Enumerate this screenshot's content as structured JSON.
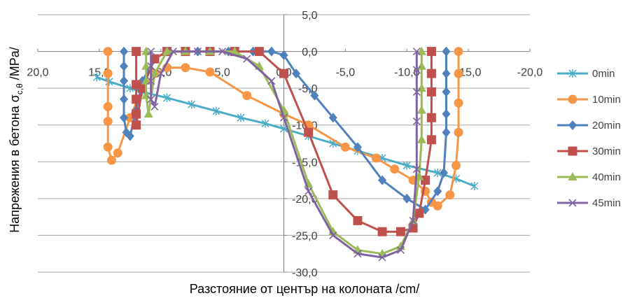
{
  "chart_data": {
    "type": "scatter",
    "xlabel": "Разстояние от център на колоната /cm/",
    "ylabel": "Напрежения в бетона σc,θ /MPa/",
    "ylabel_parts": {
      "main": "Напрежения в бетона σ",
      "sub": "c,θ",
      "unit": " /MPa/"
    },
    "xlim": [
      20,
      -20
    ],
    "ylim": [
      -30,
      5
    ],
    "x_ticks": [
      "20,0",
      "15,0",
      "10,0",
      "5,0",
      "0,0",
      "-5,0",
      "-10,0",
      "-15,0",
      "-20,0"
    ],
    "y_ticks": [
      "5,0",
      "0,0",
      "-5,0",
      "-10,0",
      "-15,0",
      "-20,0",
      "-25,0",
      "-30,0"
    ],
    "x_tick_values": [
      20,
      15,
      10,
      5,
      0,
      -5,
      -10,
      -15,
      -20
    ],
    "y_tick_values": [
      5,
      0,
      -5,
      -10,
      -15,
      -20,
      -25,
      -30
    ],
    "grid": {
      "horizontal": true,
      "vertical": false
    },
    "legend_position": "right",
    "series": [
      {
        "name": "0min",
        "color": "#4BACC6",
        "marker": "star",
        "x": [
          15.2,
          14.2,
          12.5,
          11.5,
          9.5,
          7.5,
          5.5,
          3.5,
          1.5,
          0,
          -2,
          -4,
          -6,
          -8,
          -10,
          -12.5,
          -14,
          -15.5
        ],
        "y": [
          -3.5,
          -4.1,
          -5.0,
          -5.5,
          -6.3,
          -7.2,
          -8.1,
          -9.0,
          -9.8,
          -10.5,
          -11.5,
          -12.5,
          -13.5,
          -14.5,
          -15.5,
          -16.5,
          -17.3,
          -18.3
        ]
      },
      {
        "name": "10min",
        "color": "#F79646",
        "marker": "circle",
        "x": [
          14.3,
          14.3,
          14.3,
          14.3,
          14.3,
          14.0,
          13.5,
          12.5,
          11.5,
          10.5,
          9.5,
          8.0,
          6.0,
          3.0,
          0,
          -2.0,
          -5.0,
          -7.5,
          -9.0,
          -10.5,
          -11.5,
          -12.0,
          -12.5,
          -13.5,
          -14.0,
          -14.2,
          -14.2,
          -14.2,
          -14.2
        ],
        "y": [
          0.0,
          -3.0,
          -7.5,
          -9.5,
          -13.0,
          -14.8,
          -13.8,
          -9.0,
          -5.0,
          -3.0,
          -2.2,
          -2.2,
          -2.8,
          -6.0,
          -8.5,
          -10.0,
          -13.0,
          -14.5,
          -16.0,
          -17.5,
          -19.0,
          -20.5,
          -21.0,
          -19.5,
          -15.5,
          -11.0,
          -7.0,
          -3.0,
          0.0
        ]
      },
      {
        "name": "20min",
        "color": "#4F81BD",
        "marker": "diamond",
        "x": [
          13.0,
          13.0,
          13.0,
          13.0,
          13.0,
          12.8,
          12.5,
          12.0,
          11.5,
          10.5,
          9.5,
          7.0,
          4.5,
          2.5,
          1.0,
          0,
          -1.0,
          -2.5,
          -4.0,
          -6.0,
          -8.0,
          -10.0,
          -11.5,
          -12.5,
          -13.0,
          -13.2,
          -13.2,
          -13.2,
          -13.2,
          -13.2
        ],
        "y": [
          0.0,
          -2.0,
          -4.0,
          -6.5,
          -9.0,
          -11.0,
          -11.5,
          -8.0,
          -4.0,
          -1.0,
          0.0,
          0.0,
          0.0,
          0.0,
          0.0,
          -0.5,
          -3.0,
          -6.0,
          -9.0,
          -13.0,
          -17.5,
          -20.0,
          -21.5,
          -19.0,
          -16.5,
          -11.0,
          -8.5,
          -5.5,
          -3.0,
          0.0
        ]
      },
      {
        "name": "30min",
        "color": "#C0504D",
        "marker": "square",
        "x": [
          12.0,
          12.0,
          12.0,
          12.0,
          12.0,
          11.5,
          10.5,
          9.5,
          8.0,
          6.0,
          4.0,
          2.0,
          0,
          -2.0,
          -4.0,
          -6.0,
          -8.0,
          -9.5,
          -10.5,
          -11.0,
          -11.5,
          -12.0,
          -12.0,
          -12.0,
          -12.0,
          -12.0
        ],
        "y": [
          0.0,
          -4.5,
          -6.5,
          -8.5,
          -10.0,
          -5.0,
          -1.0,
          0.0,
          0.0,
          0.0,
          0.0,
          0.0,
          -3.0,
          -11.0,
          -19.5,
          -23.0,
          -24.5,
          -24.5,
          -24.0,
          -22.0,
          -17.5,
          -12.0,
          -9.0,
          -5.5,
          -3.0,
          0.0
        ]
      },
      {
        "name": "40min",
        "color": "#9BBB59",
        "marker": "triangle",
        "x": [
          11.2,
          11.2,
          11.2,
          11.2,
          11.0,
          10.5,
          9.5,
          8.0,
          6.0,
          4.0,
          2.0,
          0,
          -2.0,
          -4.0,
          -6.0,
          -8.0,
          -9.5,
          -10.5,
          -11.0,
          -11.2,
          -11.2,
          -11.2,
          -11.2,
          -11.2
        ],
        "y": [
          0.0,
          -2.0,
          -4.0,
          -6.0,
          -8.5,
          -3.0,
          0.0,
          0.0,
          0.0,
          0.0,
          -2.0,
          -8.0,
          -18.0,
          -24.5,
          -27.0,
          -27.5,
          -26.5,
          -23.0,
          -17.0,
          -12.0,
          -8.0,
          -5.0,
          -2.0,
          0.0
        ]
      },
      {
        "name": "45min",
        "color": "#8064A2",
        "marker": "x",
        "x": [
          10.8,
          10.8,
          10.8,
          10.8,
          10.5,
          10.0,
          9.0,
          7.0,
          5.0,
          3.0,
          1.0,
          0,
          -2.0,
          -4.0,
          -6.0,
          -8.0,
          -9.5,
          -10.5,
          -10.8,
          -10.8,
          -10.8,
          -10.8,
          -10.8
        ],
        "y": [
          0.0,
          -2.0,
          -4.0,
          -6.5,
          -7.5,
          -3.0,
          0.0,
          0.0,
          0.0,
          -1.0,
          -4.0,
          -9.0,
          -19.0,
          -25.0,
          -27.5,
          -28.0,
          -27.0,
          -23.0,
          -16.0,
          -9.5,
          -5.5,
          -2.5,
          0.0
        ]
      }
    ]
  }
}
